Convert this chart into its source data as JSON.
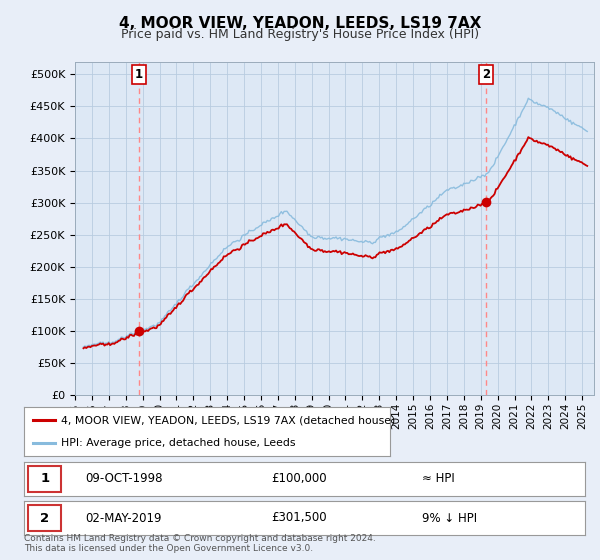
{
  "title": "4, MOOR VIEW, YEADON, LEEDS, LS19 7AX",
  "subtitle": "Price paid vs. HM Land Registry's House Price Index (HPI)",
  "ylim": [
    0,
    520000
  ],
  "yticks": [
    0,
    50000,
    100000,
    150000,
    200000,
    250000,
    300000,
    350000,
    400000,
    450000,
    500000
  ],
  "ytick_labels": [
    "£0",
    "£50K",
    "£100K",
    "£150K",
    "£200K",
    "£250K",
    "£300K",
    "£350K",
    "£400K",
    "£450K",
    "£500K"
  ],
  "xlim_start": 1995.3,
  "xlim_end": 2025.7,
  "sale1_date_num": 1998.77,
  "sale1_price": 100000,
  "sale2_date_num": 2019.33,
  "sale2_price": 301500,
  "line_color_property": "#cc0000",
  "line_color_hpi": "#88bbdd",
  "marker_color": "#cc0000",
  "vline_color": "#ff8888",
  "legend_label_property": "4, MOOR VIEW, YEADON, LEEDS, LS19 7AX (detached house)",
  "legend_label_hpi": "HPI: Average price, detached house, Leeds",
  "table_row1": [
    "1",
    "09-OCT-1998",
    "£100,000",
    "≈ HPI"
  ],
  "table_row2": [
    "2",
    "02-MAY-2019",
    "£301,500",
    "9% ↓ HPI"
  ],
  "footnote": "Contains HM Land Registry data © Crown copyright and database right 2024.\nThis data is licensed under the Open Government Licence v3.0.",
  "background_color": "#e8eef8",
  "plot_bg_color": "#dde8f5",
  "grid_color": "#b8cce0"
}
